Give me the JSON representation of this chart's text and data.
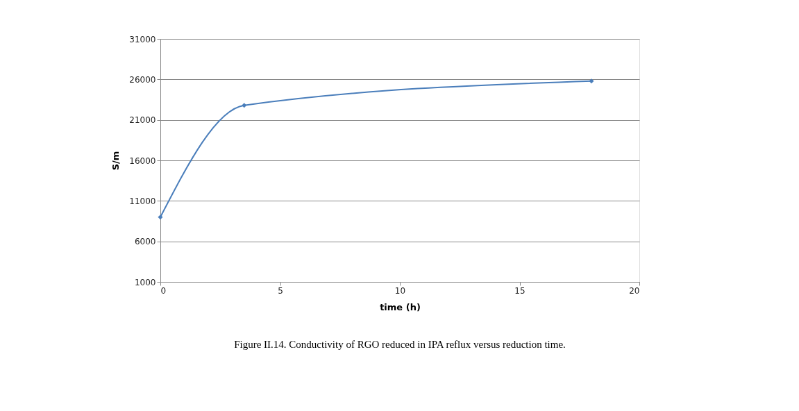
{
  "chart_data": {
    "type": "line",
    "xlabel": "time (h)",
    "ylabel": "S/m",
    "x": [
      0,
      3.5,
      18
    ],
    "series": [
      {
        "color": "#4a7ebb",
        "values": [
          9000,
          22800,
          25800
        ]
      }
    ],
    "xlim": [
      0,
      20
    ],
    "xticks": [
      0,
      5,
      10,
      15,
      20
    ],
    "ylim": [
      1000,
      31000
    ],
    "yticks": [
      1000,
      6000,
      11000,
      16000,
      21000,
      26000,
      31000
    ],
    "grid": "y",
    "marker": "diamond",
    "annotations": [
      "Figure II.14. Conductivity of RGO reduced in IPA reflux versus reduction time."
    ]
  }
}
